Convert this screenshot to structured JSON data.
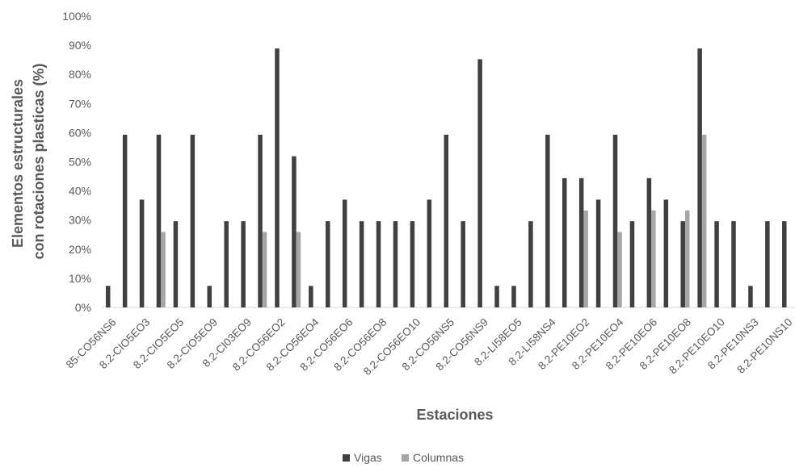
{
  "chart_data": {
    "type": "bar",
    "xlabel": "Estaciones",
    "ylabel_lines": [
      "Elementos estructurales",
      "con rotaciones plasticas  (%)"
    ],
    "ylim": [
      0,
      100
    ],
    "yticks": [
      0,
      10,
      20,
      30,
      40,
      50,
      60,
      70,
      80,
      90,
      100
    ],
    "ytick_labels": [
      "0%",
      "10%",
      "20%",
      "30%",
      "40%",
      "50%",
      "60%",
      "70%",
      "80%",
      "90%",
      "100%"
    ],
    "grid": false,
    "legend_position": "bottom",
    "category_labels": [
      "85-CO56NS6",
      "8.2-CIO5EO3",
      "8.2-CIO5EO5",
      "8.2-CIO5EO9",
      "8.2-CI03EO9",
      "8.2-CO56EO2",
      "8.2-CO56EO4",
      "8.2-CO56EO6",
      "8.2-CO56EO8",
      "8.2-CO56EO10",
      "8.2-CO56NS5",
      "8.2-CO56NS9",
      "8.2-LI58EO5",
      "8.2-LI58NS4",
      "8.2-PE10EO2",
      "8.2-PE10EO4",
      "8.2-PE10EO6",
      "8.2-PE10EO8",
      "8.2-PE10EO10",
      "8.2-PE10NS3",
      "8.2-PE10NS10"
    ],
    "label_every": 2,
    "series": [
      {
        "name": "Vigas",
        "color": "#404040",
        "values": [
          7.4,
          59.3,
          37,
          59.3,
          29.6,
          59.3,
          7.4,
          29.6,
          29.6,
          59.3,
          88.9,
          51.9,
          7.4,
          29.6,
          37,
          29.6,
          29.6,
          29.6,
          29.6,
          37,
          59.3,
          29.6,
          85.2,
          7.4,
          7.4,
          29.6,
          59.3,
          44.4,
          44.4,
          37,
          59.3,
          29.6,
          44.4,
          37,
          29.6,
          88.9,
          29.6,
          29.6,
          7.4,
          29.6,
          29.6
        ]
      },
      {
        "name": "Columnas",
        "color": "#a6a6a6",
        "values": [
          0,
          0,
          0,
          25.9,
          0,
          0,
          0,
          0,
          0,
          25.9,
          0,
          25.9,
          0,
          0,
          0,
          0,
          0,
          0,
          0,
          0,
          0,
          0,
          0,
          0,
          0,
          0,
          0,
          0,
          33.3,
          0,
          25.9,
          0,
          33.3,
          0,
          33.3,
          59.3,
          0,
          0,
          0,
          0,
          0
        ]
      }
    ]
  }
}
